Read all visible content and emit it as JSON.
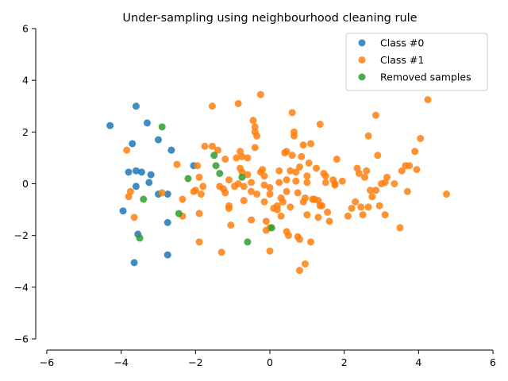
{
  "chart_data": {
    "type": "scatter",
    "title": "Under-sampling using neighbourhood cleaning rule",
    "xlabel": "",
    "ylabel": "",
    "xlim": [
      -6,
      6
    ],
    "ylim": [
      -6,
      6
    ],
    "xticks": [
      -6,
      -4,
      -2,
      0,
      2,
      4,
      6
    ],
    "yticks": [
      -6,
      -4,
      -2,
      0,
      2,
      4,
      6
    ],
    "grid": false,
    "legend_position": "top-right",
    "series": [
      {
        "name": "Class #0",
        "color": "#1f77b4",
        "points": [
          [
            -4.3,
            2.25
          ],
          [
            -3.6,
            3.0
          ],
          [
            -3.3,
            2.35
          ],
          [
            -3.7,
            1.55
          ],
          [
            -3.0,
            1.7
          ],
          [
            -2.65,
            1.3
          ],
          [
            -3.8,
            0.45
          ],
          [
            -3.6,
            0.5
          ],
          [
            -3.45,
            0.45
          ],
          [
            -3.2,
            0.35
          ],
          [
            -2.05,
            0.7
          ],
          [
            -3.6,
            -0.1
          ],
          [
            -3.25,
            0.05
          ],
          [
            -3.0,
            -0.4
          ],
          [
            -2.75,
            -0.4
          ],
          [
            -3.95,
            -1.05
          ],
          [
            -2.75,
            -1.5
          ],
          [
            -3.55,
            -1.95
          ],
          [
            -3.65,
            -3.05
          ],
          [
            -2.75,
            -2.75
          ]
        ]
      },
      {
        "name": "Class #1",
        "color": "#ff7f0e",
        "points": [
          [
            -3.85,
            1.3
          ],
          [
            -3.75,
            -0.3
          ],
          [
            -3.8,
            -0.5
          ],
          [
            -3.65,
            -1.3
          ],
          [
            -2.9,
            -0.35
          ],
          [
            -2.5,
            0.75
          ],
          [
            -2.35,
            -0.6
          ],
          [
            -2.35,
            -1.25
          ],
          [
            -2.05,
            -0.3
          ],
          [
            -2.0,
            -0.25
          ],
          [
            -1.95,
            0.7
          ],
          [
            -1.9,
            0.25
          ],
          [
            -1.85,
            -0.4
          ],
          [
            -1.9,
            -1.15
          ],
          [
            -1.9,
            -2.25
          ],
          [
            -1.8,
            -0.1
          ],
          [
            -1.75,
            1.45
          ],
          [
            -1.55,
            1.45
          ],
          [
            -1.55,
            3.0
          ],
          [
            -1.4,
            1.3
          ],
          [
            -1.35,
            -0.1
          ],
          [
            -1.25,
            -0.2
          ],
          [
            -1.2,
            0.95
          ],
          [
            -1.2,
            -0.35
          ],
          [
            -1.1,
            -0.85
          ],
          [
            -1.1,
            -0.95
          ],
          [
            -1.1,
            0.15
          ],
          [
            -1.05,
            -1.6
          ],
          [
            -1.3,
            -2.65
          ],
          [
            -0.95,
            -0.1
          ],
          [
            -0.9,
            1.0
          ],
          [
            -0.85,
            3.1
          ],
          [
            -0.85,
            0.0
          ],
          [
            -0.8,
            1.25
          ],
          [
            -0.8,
            0.6
          ],
          [
            -0.75,
            1.05
          ],
          [
            -0.75,
            0.45
          ],
          [
            -0.7,
            -0.65
          ],
          [
            -0.7,
            -0.1
          ],
          [
            -0.6,
            0.35
          ],
          [
            -0.6,
            1.0
          ],
          [
            -0.5,
            0.05
          ],
          [
            -0.5,
            -0.3
          ],
          [
            -0.5,
            -1.4
          ],
          [
            -0.45,
            2.45
          ],
          [
            -0.4,
            2.2
          ],
          [
            -0.4,
            2.0
          ],
          [
            -0.35,
            1.85
          ],
          [
            -0.4,
            1.4
          ],
          [
            -0.35,
            -0.4
          ],
          [
            -0.25,
            3.45
          ],
          [
            -0.25,
            0.45
          ],
          [
            -0.2,
            0.55
          ],
          [
            -0.15,
            0.3
          ],
          [
            -0.15,
            -0.05
          ],
          [
            -0.15,
            -0.7
          ],
          [
            -0.1,
            -1.45
          ],
          [
            -0.1,
            -1.8
          ],
          [
            0.0,
            -0.15
          ],
          [
            0.0,
            -0.4
          ],
          [
            0.0,
            -1.7
          ],
          [
            0.0,
            -2.6
          ],
          [
            0.1,
            -0.95
          ],
          [
            0.2,
            -0.85
          ],
          [
            0.2,
            -1.0
          ],
          [
            0.25,
            0.5
          ],
          [
            0.25,
            0.05
          ],
          [
            0.3,
            -0.55
          ],
          [
            0.3,
            -1.25
          ],
          [
            0.35,
            -0.7
          ],
          [
            0.4,
            1.2
          ],
          [
            0.45,
            1.25
          ],
          [
            0.45,
            0.15
          ],
          [
            0.45,
            -0.3
          ],
          [
            0.45,
            -1.85
          ],
          [
            0.5,
            -2.0
          ],
          [
            0.55,
            -0.9
          ],
          [
            0.55,
            0.5
          ],
          [
            0.6,
            1.1
          ],
          [
            0.6,
            2.75
          ],
          [
            0.65,
            2.0
          ],
          [
            0.65,
            1.85
          ],
          [
            0.7,
            0.1
          ],
          [
            0.7,
            0.45
          ],
          [
            0.75,
            -0.35
          ],
          [
            0.75,
            -2.05
          ],
          [
            0.8,
            -2.15
          ],
          [
            0.8,
            -3.35
          ],
          [
            0.8,
            0.65
          ],
          [
            0.85,
            1.05
          ],
          [
            0.9,
            1.5
          ],
          [
            0.9,
            -0.7
          ],
          [
            0.95,
            -3.1
          ],
          [
            0.95,
            -0.55
          ],
          [
            1.0,
            0.05
          ],
          [
            1.0,
            -1.2
          ],
          [
            1.0,
            0.3
          ],
          [
            1.05,
            0.8
          ],
          [
            1.1,
            1.55
          ],
          [
            1.1,
            -2.25
          ],
          [
            1.15,
            -0.6
          ],
          [
            1.2,
            -0.6
          ],
          [
            1.25,
            0.6
          ],
          [
            1.3,
            -0.65
          ],
          [
            1.3,
            -1.3
          ],
          [
            1.35,
            -0.85
          ],
          [
            1.35,
            2.3
          ],
          [
            1.4,
            -0.85
          ],
          [
            1.45,
            0.4
          ],
          [
            1.5,
            0.3
          ],
          [
            1.5,
            0.05
          ],
          [
            1.55,
            -1.1
          ],
          [
            1.6,
            -1.45
          ],
          [
            1.7,
            0.15
          ],
          [
            1.75,
            0.0
          ],
          [
            1.75,
            -0.05
          ],
          [
            1.8,
            0.95
          ],
          [
            1.95,
            0.1
          ],
          [
            2.1,
            -1.25
          ],
          [
            2.2,
            -0.95
          ],
          [
            2.3,
            -0.7
          ],
          [
            2.35,
            0.6
          ],
          [
            2.4,
            0.4
          ],
          [
            2.45,
            -0.9
          ],
          [
            2.5,
            -1.2
          ],
          [
            2.55,
            0.25
          ],
          [
            2.6,
            0.5
          ],
          [
            2.65,
            1.85
          ],
          [
            2.65,
            -0.9
          ],
          [
            2.7,
            -0.25
          ],
          [
            2.75,
            -0.5
          ],
          [
            2.85,
            2.65
          ],
          [
            2.85,
            -0.25
          ],
          [
            2.9,
            1.1
          ],
          [
            2.95,
            -0.85
          ],
          [
            3.0,
            0.0
          ],
          [
            3.1,
            -1.2
          ],
          [
            3.1,
            0.05
          ],
          [
            3.15,
            0.25
          ],
          [
            3.35,
            0.0
          ],
          [
            3.5,
            -1.7
          ],
          [
            3.55,
            0.5
          ],
          [
            3.65,
            0.7
          ],
          [
            3.7,
            -0.3
          ],
          [
            3.75,
            0.7
          ],
          [
            3.9,
            1.25
          ],
          [
            3.95,
            0.55
          ],
          [
            4.05,
            1.75
          ],
          [
            4.25,
            3.25
          ],
          [
            4.75,
            -0.4
          ]
        ]
      },
      {
        "name": "Removed samples",
        "color": "#2ca02c",
        "points": [
          [
            -2.9,
            2.2
          ],
          [
            -1.5,
            1.1
          ],
          [
            -1.45,
            0.7
          ],
          [
            -1.35,
            0.4
          ],
          [
            -2.2,
            0.2
          ],
          [
            -0.75,
            0.25
          ],
          [
            -3.4,
            -0.6
          ],
          [
            -2.45,
            -1.15
          ],
          [
            -3.5,
            -2.1
          ],
          [
            -0.6,
            -2.25
          ],
          [
            0.05,
            -1.7
          ]
        ]
      }
    ]
  }
}
